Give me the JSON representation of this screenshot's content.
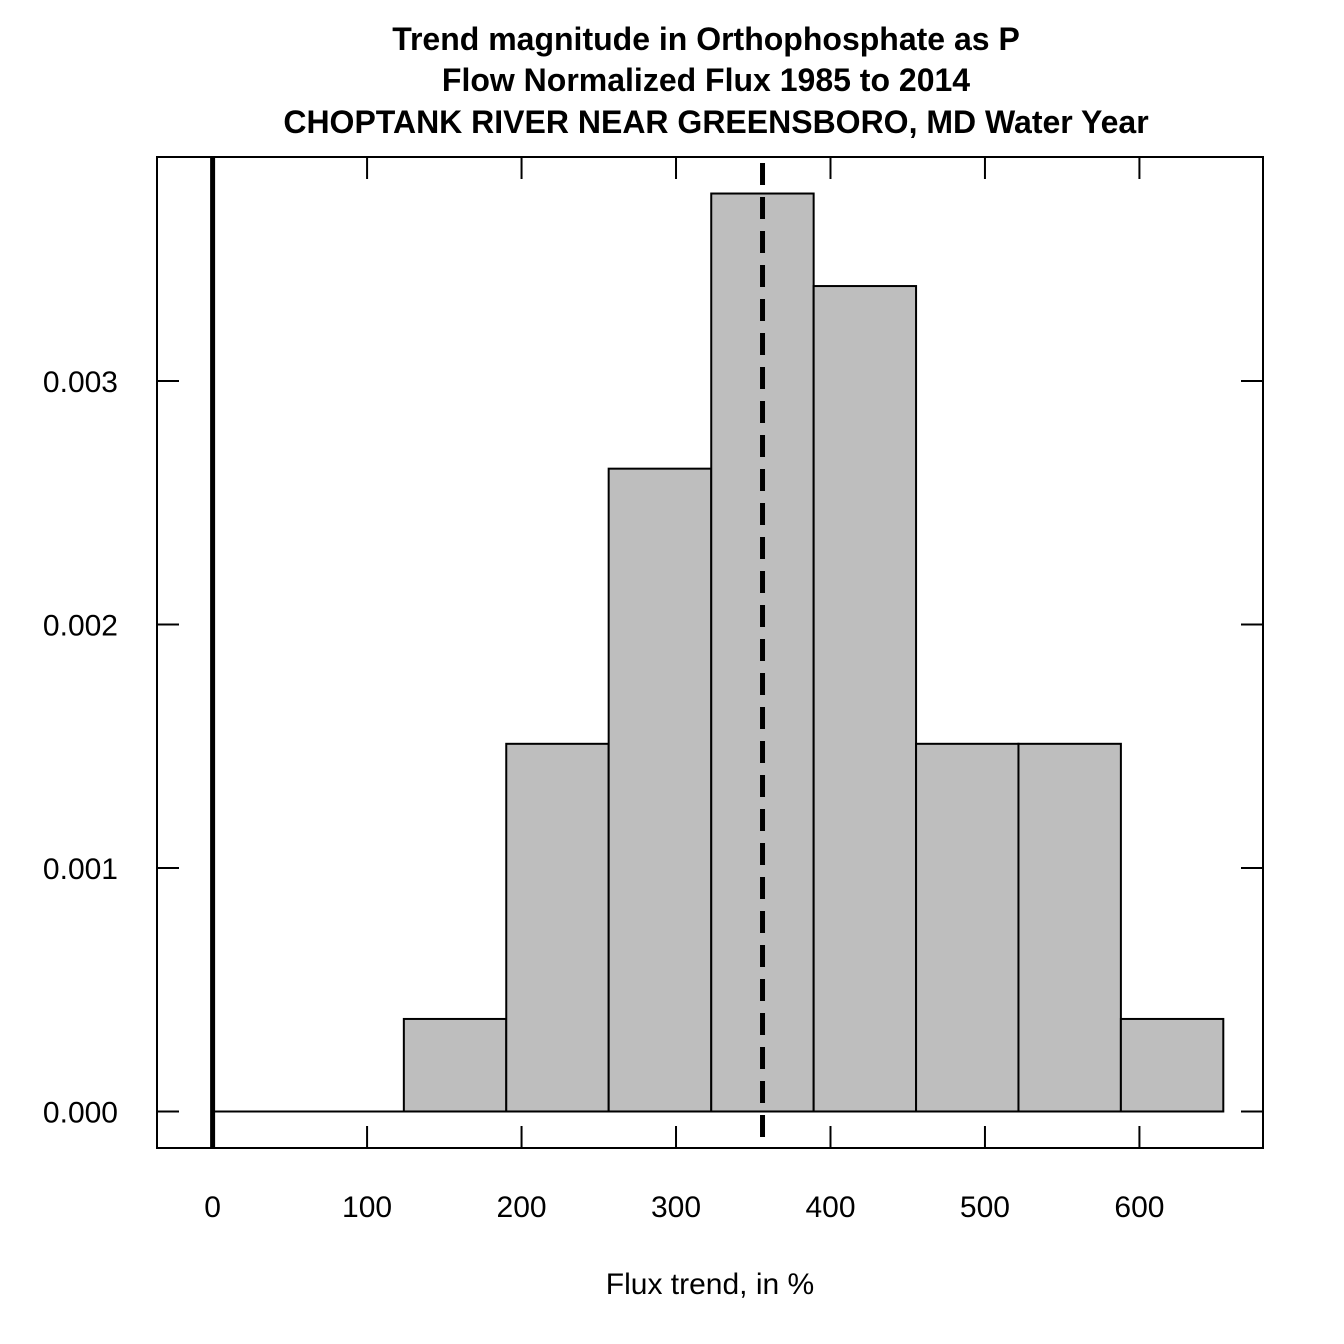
{
  "chart_data": {
    "type": "bar",
    "subtype": "histogram",
    "title_lines": [
      "Trend magnitude in Orthophosphate as P",
      "Flow Normalized Flux 1985 to 2014",
      "CHOPTANK RIVER NEAR GREENSBORO, MD Water Year"
    ],
    "xlabel": "Flux trend, in %",
    "ylabel": "",
    "xlim": [
      -36,
      680
    ],
    "ylim": [
      -0.00015,
      0.00392
    ],
    "x_ticks": [
      0,
      100,
      200,
      300,
      400,
      500,
      600
    ],
    "x_tick_labels": [
      "0",
      "100",
      "200",
      "300",
      "400",
      "500",
      "600"
    ],
    "y_ticks": [
      0,
      0.001,
      0.002,
      0.003
    ],
    "y_tick_labels": [
      "0.000",
      "0.001",
      "0.002",
      "0.003"
    ],
    "bins": [
      {
        "start": 123.8,
        "end": 190.1,
        "density": 0.00038
      },
      {
        "start": 190.1,
        "end": 256.4,
        "density": 0.00151
      },
      {
        "start": 256.4,
        "end": 322.8,
        "density": 0.00264
      },
      {
        "start": 322.8,
        "end": 389.1,
        "density": 0.00377
      },
      {
        "start": 389.1,
        "end": 455.4,
        "density": 0.00339
      },
      {
        "start": 455.4,
        "end": 521.7,
        "density": 0.00151
      },
      {
        "start": 521.7,
        "end": 588.0,
        "density": 0.00151
      },
      {
        "start": 588.0,
        "end": 654.3,
        "density": 0.00038
      }
    ],
    "reference_line_zero": 0,
    "estimate_line": 356,
    "baseline_range": [
      0,
      654.3
    ],
    "colors": {
      "bar_fill": "#bebebe",
      "bar_stroke": "#000000",
      "lines": "#000000",
      "background": "#ffffff"
    },
    "grid": false,
    "legend": "none"
  }
}
